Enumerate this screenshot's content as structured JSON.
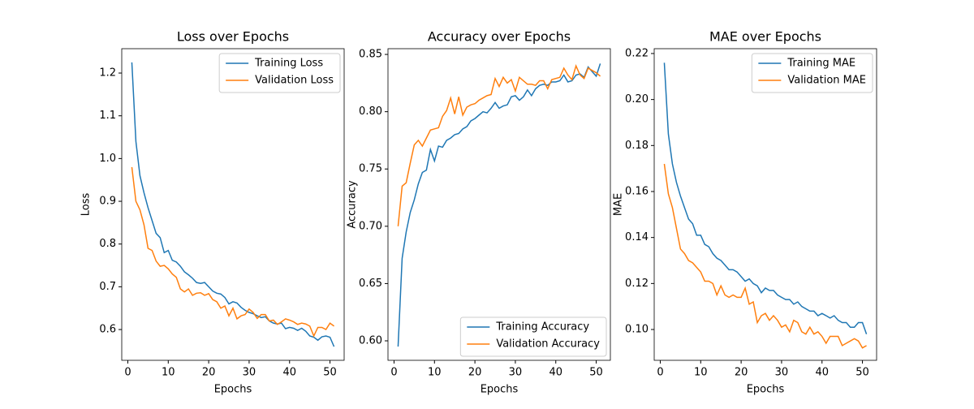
{
  "chart_data": [
    {
      "type": "line",
      "title": "Loss over Epochs",
      "xlabel": "Epochs",
      "ylabel": "Loss",
      "legend": "upper right",
      "grid": false,
      "x": [
        1,
        2,
        3,
        4,
        5,
        6,
        7,
        8,
        9,
        10,
        11,
        12,
        13,
        14,
        15,
        16,
        17,
        18,
        19,
        20,
        21,
        22,
        23,
        24,
        25,
        26,
        27,
        28,
        29,
        30,
        31,
        32,
        33,
        34,
        35,
        36,
        37,
        38,
        39,
        40,
        41,
        42,
        43,
        44,
        45,
        46,
        47,
        48,
        49,
        50,
        51
      ],
      "xlim": [
        -1.5,
        53.5
      ],
      "xticks": [
        0,
        10,
        20,
        30,
        40,
        50
      ],
      "ylim": [
        0.528,
        1.257
      ],
      "yticks": [
        0.6,
        0.7,
        0.8,
        0.9,
        {
          "value": 1,
          "label": "1.0"
        },
        1.1,
        1.2
      ],
      "series": [
        {
          "name": "Training Loss",
          "color": "#1f77b4",
          "values": [
            1.225,
            1.04,
            0.96,
            0.92,
            0.885,
            0.855,
            0.825,
            0.815,
            0.78,
            0.785,
            0.762,
            0.758,
            0.748,
            0.735,
            0.728,
            0.72,
            0.71,
            0.708,
            0.71,
            0.7,
            0.69,
            0.685,
            0.683,
            0.675,
            0.66,
            0.665,
            0.662,
            0.652,
            0.645,
            0.64,
            0.637,
            0.632,
            0.628,
            0.63,
            0.62,
            0.615,
            0.613,
            0.615,
            0.602,
            0.605,
            0.603,
            0.598,
            0.603,
            0.596,
            0.585,
            0.582,
            0.575,
            0.583,
            0.585,
            0.582,
            0.56
          ]
        },
        {
          "name": "Validation Loss",
          "color": "#ff7f0e",
          "values": [
            0.98,
            0.9,
            0.88,
            0.845,
            0.79,
            0.785,
            0.76,
            0.748,
            0.75,
            0.742,
            0.73,
            0.722,
            0.695,
            0.688,
            0.695,
            0.68,
            0.685,
            0.686,
            0.68,
            0.684,
            0.67,
            0.665,
            0.65,
            0.655,
            0.632,
            0.65,
            0.625,
            0.632,
            0.635,
            0.648,
            0.64,
            0.626,
            0.635,
            0.635,
            0.62,
            0.622,
            0.612,
            0.618,
            0.625,
            0.622,
            0.618,
            0.612,
            0.615,
            0.613,
            0.608,
            0.585,
            0.605,
            0.605,
            0.6,
            0.615,
            0.608
          ]
        }
      ]
    },
    {
      "type": "line",
      "title": "Accuracy over Epochs",
      "xlabel": "Epochs",
      "ylabel": "Accuracy",
      "legend": "lower right",
      "grid": false,
      "x": [
        1,
        2,
        3,
        4,
        5,
        6,
        7,
        8,
        9,
        10,
        11,
        12,
        13,
        14,
        15,
        16,
        17,
        18,
        19,
        20,
        21,
        22,
        23,
        24,
        25,
        26,
        27,
        28,
        29,
        30,
        31,
        32,
        33,
        34,
        35,
        36,
        37,
        38,
        39,
        40,
        41,
        42,
        43,
        44,
        45,
        46,
        47,
        48,
        49,
        50,
        51
      ],
      "xlim": [
        -1.5,
        53.5
      ],
      "xticks": [
        0,
        10,
        20,
        30,
        40,
        50
      ],
      "ylim": [
        0.583,
        0.855
      ],
      "yticks": [
        {
          "value": 0.6,
          "label": "0.60"
        },
        0.65,
        {
          "value": 0.7,
          "label": "0.70"
        },
        0.75,
        {
          "value": 0.8,
          "label": "0.80"
        },
        0.85
      ],
      "series": [
        {
          "name": "Training Accuracy",
          "color": "#1f77b4",
          "values": [
            0.595,
            0.672,
            0.695,
            0.712,
            0.723,
            0.737,
            0.747,
            0.749,
            0.767,
            0.757,
            0.77,
            0.769,
            0.775,
            0.777,
            0.78,
            0.781,
            0.785,
            0.787,
            0.792,
            0.794,
            0.797,
            0.8,
            0.799,
            0.803,
            0.808,
            0.803,
            0.805,
            0.806,
            0.813,
            0.814,
            0.81,
            0.813,
            0.819,
            0.814,
            0.82,
            0.823,
            0.824,
            0.823,
            0.826,
            0.826,
            0.827,
            0.832,
            0.826,
            0.827,
            0.832,
            0.833,
            0.83,
            0.839,
            0.835,
            0.831,
            0.842
          ]
        },
        {
          "name": "Validation Accuracy",
          "color": "#ff7f0e",
          "values": [
            0.7,
            0.735,
            0.738,
            0.755,
            0.771,
            0.775,
            0.77,
            0.777,
            0.784,
            0.785,
            0.786,
            0.796,
            0.801,
            0.812,
            0.798,
            0.813,
            0.797,
            0.804,
            0.806,
            0.807,
            0.81,
            0.812,
            0.814,
            0.815,
            0.829,
            0.822,
            0.83,
            0.825,
            0.828,
            0.818,
            0.83,
            0.827,
            0.824,
            0.824,
            0.823,
            0.827,
            0.827,
            0.82,
            0.828,
            0.829,
            0.83,
            0.838,
            0.832,
            0.828,
            0.84,
            0.832,
            0.829,
            0.838,
            0.836,
            0.834,
            0.831
          ]
        }
      ]
    },
    {
      "type": "line",
      "title": "MAE over Epochs",
      "xlabel": "Epochs",
      "ylabel": "MAE",
      "legend": "upper right",
      "grid": false,
      "x": [
        1,
        2,
        3,
        4,
        5,
        6,
        7,
        8,
        9,
        10,
        11,
        12,
        13,
        14,
        15,
        16,
        17,
        18,
        19,
        20,
        21,
        22,
        23,
        24,
        25,
        26,
        27,
        28,
        29,
        30,
        31,
        32,
        33,
        34,
        35,
        36,
        37,
        38,
        39,
        40,
        41,
        42,
        43,
        44,
        45,
        46,
        47,
        48,
        49,
        50,
        51
      ],
      "xlim": [
        -1.5,
        53.5
      ],
      "xticks": [
        0,
        10,
        20,
        30,
        40,
        50
      ],
      "ylim": [
        0.0866,
        0.2221
      ],
      "yticks": [
        {
          "value": 0.1,
          "label": "0.10"
        },
        0.12,
        0.14,
        0.16,
        0.18,
        {
          "value": 0.2,
          "label": "0.20"
        },
        0.22
      ],
      "series": [
        {
          "name": "Training MAE",
          "color": "#1f77b4",
          "values": [
            0.216,
            0.185,
            0.172,
            0.164,
            0.158,
            0.153,
            0.148,
            0.146,
            0.141,
            0.141,
            0.137,
            0.136,
            0.133,
            0.131,
            0.13,
            0.128,
            0.126,
            0.126,
            0.125,
            0.123,
            0.121,
            0.122,
            0.12,
            0.119,
            0.116,
            0.118,
            0.117,
            0.117,
            0.115,
            0.114,
            0.113,
            0.113,
            0.111,
            0.112,
            0.11,
            0.109,
            0.108,
            0.108,
            0.106,
            0.107,
            0.106,
            0.105,
            0.106,
            0.104,
            0.103,
            0.103,
            0.101,
            0.101,
            0.103,
            0.103,
            0.098
          ]
        },
        {
          "name": "Validation MAE",
          "color": "#ff7f0e",
          "values": [
            0.172,
            0.159,
            0.153,
            0.144,
            0.135,
            0.133,
            0.13,
            0.129,
            0.127,
            0.125,
            0.121,
            0.121,
            0.12,
            0.115,
            0.119,
            0.115,
            0.114,
            0.115,
            0.114,
            0.114,
            0.118,
            0.111,
            0.112,
            0.103,
            0.106,
            0.107,
            0.104,
            0.106,
            0.104,
            0.101,
            0.102,
            0.099,
            0.104,
            0.103,
            0.099,
            0.098,
            0.101,
            0.098,
            0.099,
            0.097,
            0.094,
            0.097,
            0.097,
            0.097,
            0.093,
            0.094,
            0.095,
            0.096,
            0.095,
            0.092,
            0.093
          ]
        }
      ]
    }
  ]
}
